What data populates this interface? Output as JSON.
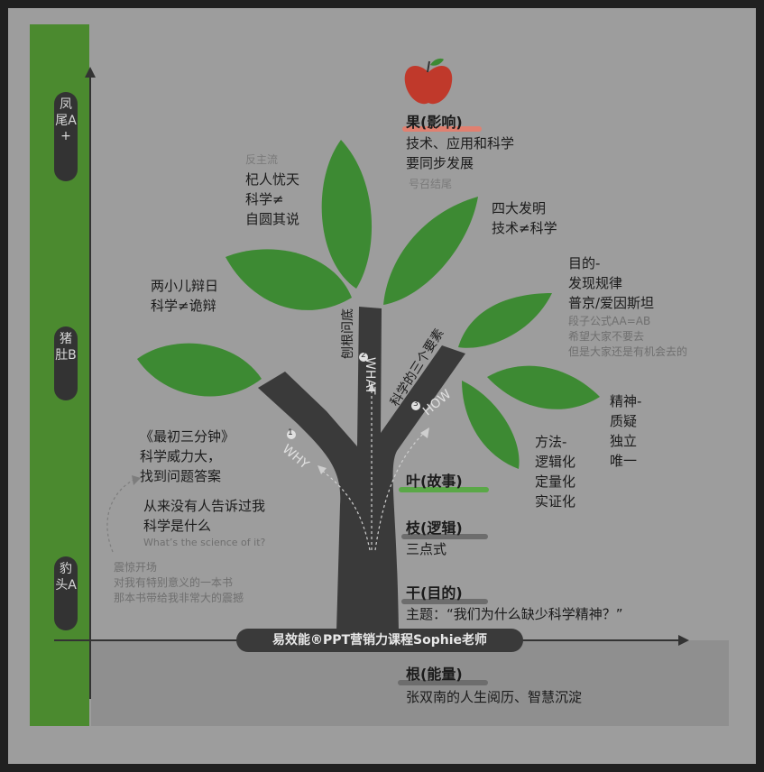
{
  "levels": {
    "top": "凤尾A+",
    "middle": "猪肚B",
    "bottom": "豹头A"
  },
  "apple": {
    "title": "果(影响)",
    "line1": "技术、应用和科学",
    "line2": "要同步发展",
    "note": "号召结尾"
  },
  "branches": {
    "why_label": "WHY",
    "what_label": "WHAT",
    "how_label": "HOW",
    "why_num": "1",
    "what_num": "2",
    "how_num": "3",
    "trunk_text": "刨根问底",
    "how_text": "科学的三个要素"
  },
  "notes": {
    "anti_mainstream": "反主流",
    "qi_1": "杞人忧天",
    "qi_2": "科学≠",
    "qi_3": "自圆其说",
    "four_1": "四大发明",
    "four_2": "技术≠科学",
    "two_1": "两小儿辩日",
    "two_2": "科学≠诡辩",
    "goal_1": "目的-",
    "goal_2": "发现规律",
    "goal_3": "普京/爱因斯坦",
    "goal_4": "段子公式AA=AB",
    "goal_5": "希望大家不要去",
    "goal_6": "但是大家还是有机会去的",
    "spirit_1": "精神-",
    "spirit_2": "质疑",
    "spirit_3": "独立",
    "spirit_4": "唯一",
    "method_1": "方法-",
    "method_2": "逻辑化",
    "method_3": "定量化",
    "method_4": "实证化",
    "book_1": "《最初三分钟》",
    "book_2": "科学威力大，",
    "book_3": "找到问题答案",
    "never_1": "从来没有人告诉过我",
    "never_2": "科学是什么",
    "never_en": "What’s the science of it?",
    "shock_1": "震惊开场",
    "shock_2": "对我有特别意义的一本书",
    "shock_3": "那本书带给我非常大的震撼"
  },
  "legend": {
    "leaf": "叶(故事)",
    "branch": "枝(逻辑)",
    "branch_sub": "三点式",
    "trunk": "干(目的)",
    "trunk_sub": "主题：“我们为什么缺少科学精神？”",
    "root": "根(能量)",
    "root_sub": "张双南的人生阅历、智慧沉淀"
  },
  "banner": "易效能®PPT营销力课程Sophie老师",
  "colors": {
    "leaf": "#3d8a33",
    "trunk": "#3a3a3a",
    "bg": "#9d9d9d",
    "apple": "#c0392b",
    "column": "#4b8a2f"
  }
}
